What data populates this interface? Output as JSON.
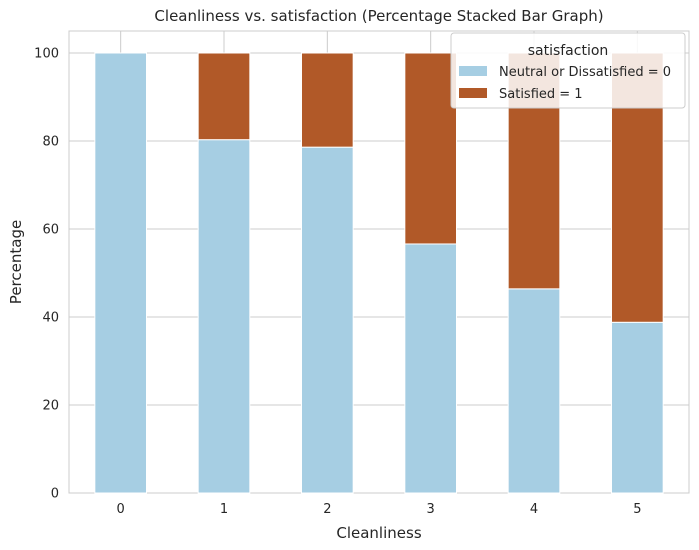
{
  "chart_data": {
    "type": "bar",
    "stacked": true,
    "title": "Cleanliness vs. satisfaction (Percentage Stacked Bar Graph)",
    "xlabel": "Cleanliness",
    "ylabel": "Percentage",
    "categories": [
      "0",
      "1",
      "2",
      "3",
      "4",
      "5"
    ],
    "ylim": [
      0,
      105
    ],
    "yticks": [
      "0",
      "20",
      "40",
      "60",
      "80",
      "100"
    ],
    "grid": true,
    "legend": {
      "title": "satisfaction",
      "placement": "top-right"
    },
    "series": [
      {
        "name": "Neutral or Dissatisfied = 0",
        "color": "#a6cee3",
        "values": [
          100,
          80.3,
          78.6,
          56.6,
          46.4,
          38.8
        ]
      },
      {
        "name": "Satisfied = 1",
        "color": "#b15928",
        "values": [
          0,
          19.7,
          21.4,
          43.4,
          53.6,
          61.2
        ]
      }
    ]
  }
}
